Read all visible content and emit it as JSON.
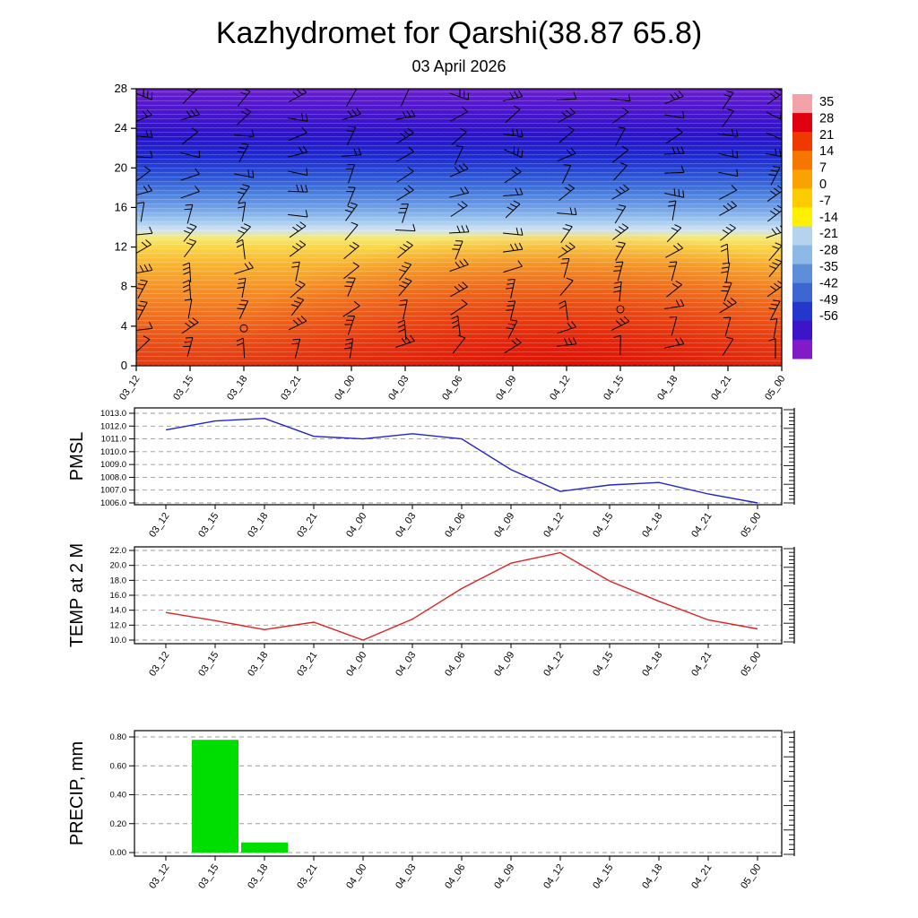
{
  "header": {
    "title": "Kazhydromet for Qarshi(38.87 65.8)",
    "subtitle": "03 April 2026"
  },
  "time_axis": {
    "categories": [
      "03_12",
      "03_15",
      "03_18",
      "03_21",
      "04_00",
      "04_03",
      "04_06",
      "04_09",
      "04_12",
      "04_15",
      "04_18",
      "04_21",
      "05_00"
    ]
  },
  "chart_data": [
    {
      "type": "heatmap",
      "name": "temperature-height-cross-section",
      "x_categories": [
        "03_12",
        "03_15",
        "03_18",
        "03_21",
        "04_00",
        "04_03",
        "04_06",
        "04_09",
        "04_12",
        "04_15",
        "04_18",
        "04_21",
        "05_00"
      ],
      "y_ticks": [
        "0",
        "4",
        "8",
        "12",
        "16",
        "20",
        "24",
        "28"
      ],
      "ylim": [
        0,
        28
      ],
      "overlay": "wind-barbs",
      "colorbar": {
        "tick_labels": [
          "35",
          "28",
          "21",
          "14",
          "7",
          "0",
          "-7",
          "-14",
          "-21",
          "-28",
          "-35",
          "-42",
          "-49",
          "-56"
        ],
        "band_colors_top_to_bottom": [
          "#f2a2a8",
          "#e00010",
          "#ee3a00",
          "#f57600",
          "#faa300",
          "#fccb00",
          "#fdf100",
          "#b6d3ee",
          "#8db9e6",
          "#5c8ed9",
          "#3d66d1",
          "#2436cc",
          "#3d15c8",
          "#811bc8"
        ]
      },
      "field_gradient_top_to_bottom": [
        {
          "pos": 0.0,
          "color": "#6b20d0"
        },
        {
          "pos": 0.08,
          "color": "#4a14cc"
        },
        {
          "pos": 0.17,
          "color": "#2813c8"
        },
        {
          "pos": 0.25,
          "color": "#1e2bd0"
        },
        {
          "pos": 0.31,
          "color": "#2a51d4"
        },
        {
          "pos": 0.37,
          "color": "#4579dc"
        },
        {
          "pos": 0.43,
          "color": "#70a0e6"
        },
        {
          "pos": 0.475,
          "color": "#9fc7ef"
        },
        {
          "pos": 0.51,
          "color": "#cfe2f4"
        },
        {
          "pos": 0.535,
          "color": "#f2ea80"
        },
        {
          "pos": 0.565,
          "color": "#fbd94a"
        },
        {
          "pos": 0.63,
          "color": "#f9b632"
        },
        {
          "pos": 0.72,
          "color": "#f59226"
        },
        {
          "pos": 0.82,
          "color": "#f1701e"
        },
        {
          "pos": 0.92,
          "color": "#e94e16"
        },
        {
          "pos": 1.0,
          "color": "#e23a12"
        }
      ]
    },
    {
      "type": "line",
      "name": "pmsl",
      "ylabel": "PMSL",
      "line_color": "#2222cc",
      "y_tick_labels": [
        "1013.0",
        "1012.0",
        "1011.0",
        "1010.0",
        "1009.0",
        "1008.0",
        "1007.0",
        "1006.0"
      ],
      "ylim": [
        1006,
        1013
      ],
      "x_categories": [
        "03_12",
        "03_15",
        "03_18",
        "03_21",
        "04_00",
        "04_03",
        "04_06",
        "04_09",
        "04_12",
        "04_15",
        "04_18",
        "04_21",
        "05_00"
      ],
      "values": [
        1011.7,
        1012.4,
        1012.6,
        1011.2,
        1011.0,
        1011.4,
        1011.0,
        1008.6,
        1006.9,
        1007.4,
        1007.6,
        1006.7,
        1006.0
      ]
    },
    {
      "type": "line",
      "name": "temp-2m",
      "ylabel": "TEMP at 2 M",
      "line_color": "#dd2222",
      "y_tick_labels": [
        "22.0",
        "20.0",
        "18.0",
        "16.0",
        "14.0",
        "12.0",
        "10.0"
      ],
      "ylim": [
        10,
        22
      ],
      "x_categories": [
        "03_12",
        "03_15",
        "03_18",
        "03_21",
        "04_00",
        "04_03",
        "04_06",
        "04_09",
        "04_12",
        "04_15",
        "04_18",
        "04_21",
        "05_00"
      ],
      "values": [
        13.7,
        12.6,
        11.4,
        12.4,
        10.0,
        12.8,
        16.9,
        20.3,
        21.7,
        17.9,
        15.2,
        12.7,
        11.5
      ]
    },
    {
      "type": "bar",
      "name": "precip",
      "ylabel": "PRECIP, mm",
      "bar_color": "#00dd00",
      "y_tick_labels": [
        "0.80",
        "0.60",
        "0.40",
        "0.20",
        "0.00"
      ],
      "ylim": [
        0,
        0.8
      ],
      "x_categories": [
        "03_12",
        "03_15",
        "03_18",
        "03_21",
        "04_00",
        "04_03",
        "04_06",
        "04_09",
        "04_12",
        "04_15",
        "04_18",
        "04_21",
        "05_00"
      ],
      "values": [
        0,
        0.78,
        0.07,
        0,
        0,
        0,
        0,
        0,
        0,
        0,
        0,
        0,
        0
      ]
    }
  ]
}
